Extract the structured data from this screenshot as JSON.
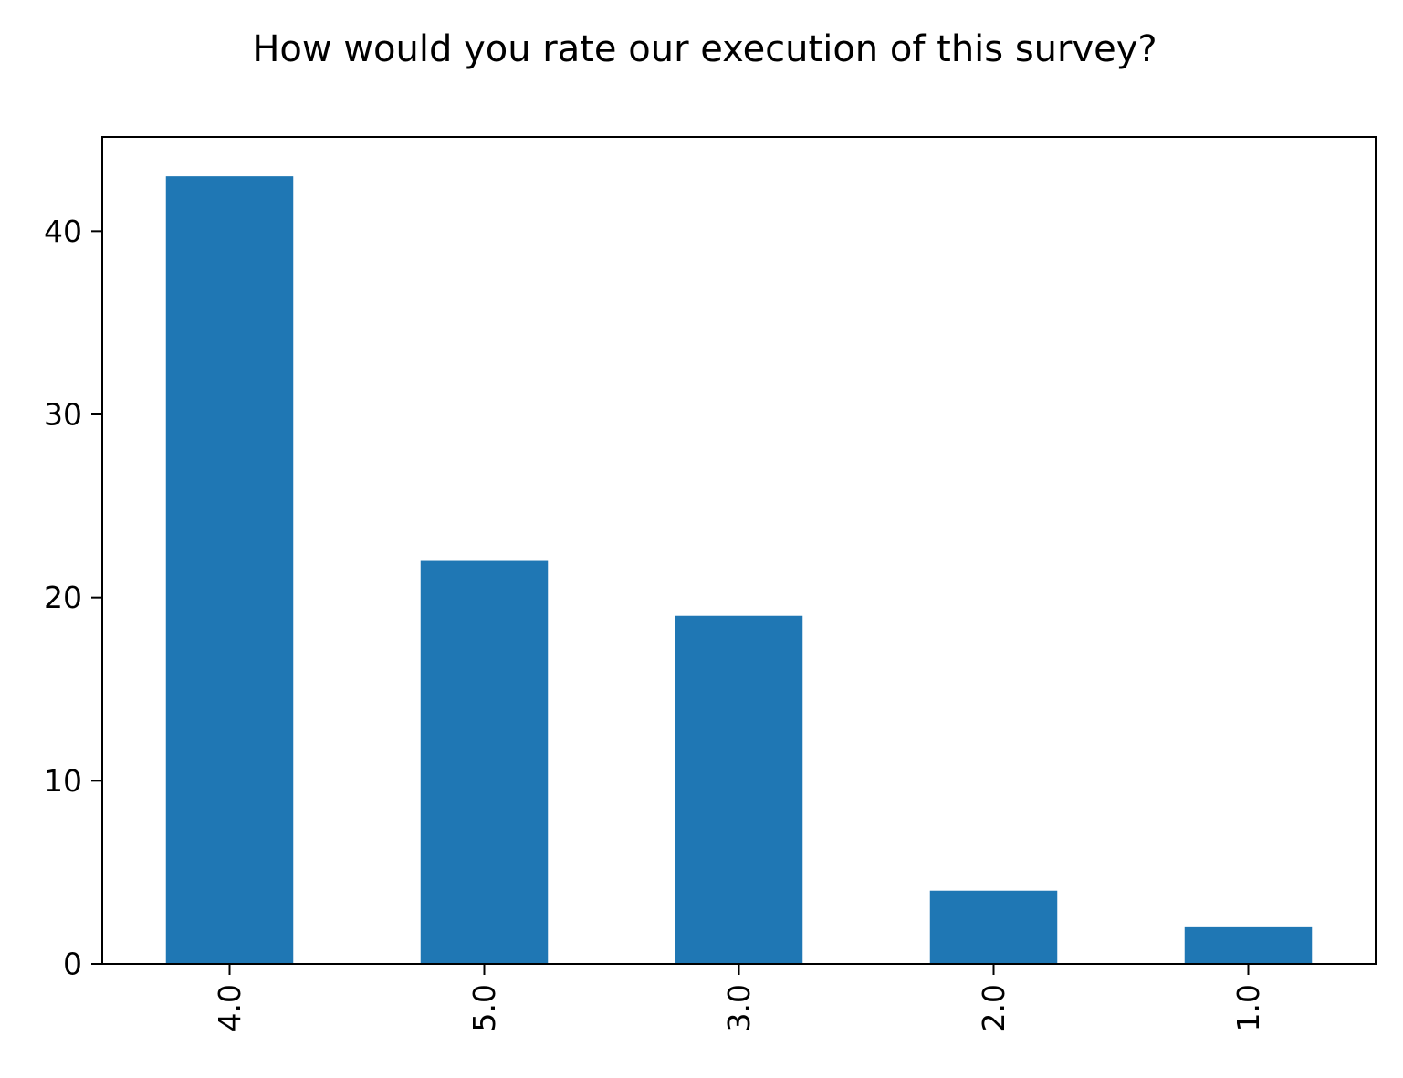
{
  "chart_data": {
    "type": "bar",
    "title": "How would you rate our execution of this survey?",
    "xlabel": "",
    "ylabel": "",
    "categories": [
      "4.0",
      "5.0",
      "3.0",
      "2.0",
      "1.0"
    ],
    "values": [
      43,
      22,
      19,
      4,
      2
    ],
    "ylim": [
      0,
      45.15
    ],
    "yticks": [
      0,
      10,
      20,
      30,
      40
    ],
    "grid": false,
    "legend": "none",
    "bar_color": "#1f77b4",
    "x_tick_rotation": 90
  }
}
